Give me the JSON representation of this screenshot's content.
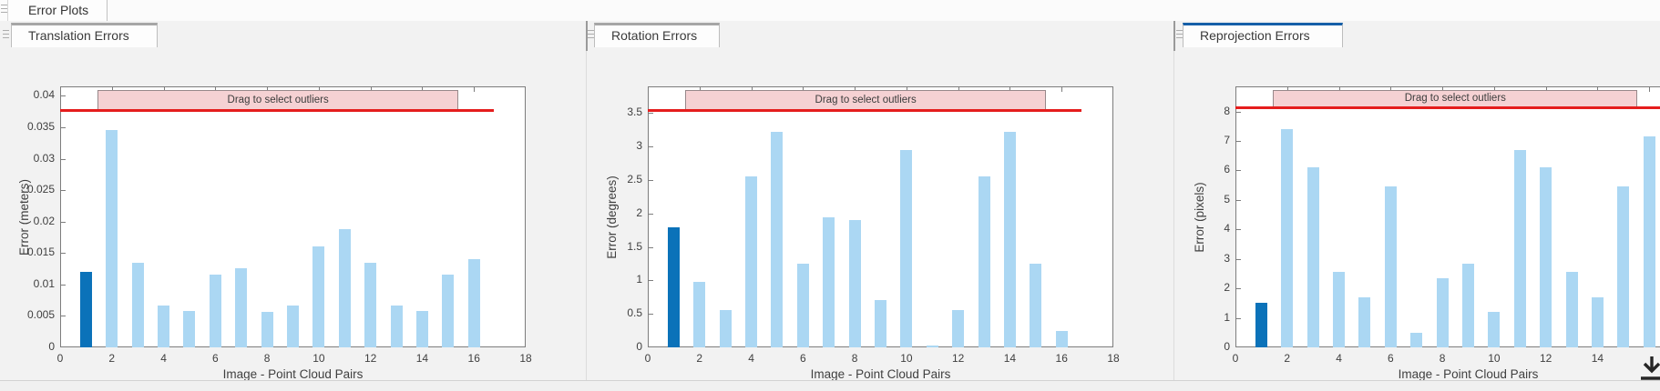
{
  "header": {
    "tab_label": "Error Plots"
  },
  "panels": [
    {
      "tab": "Translation Errors",
      "active": false
    },
    {
      "tab": "Rotation Errors",
      "active": false
    },
    {
      "tab": "Reprojection Errors",
      "active": true
    }
  ],
  "colors": {
    "bar_light": "#abd7f3",
    "bar_selected": "#0b72b9",
    "threshold_red": "#e51d1d",
    "band_fill": "#f5d1d3",
    "band_border": "#97888a",
    "active_tab_accent": "#155fa8",
    "axis_gray": "#7d7d7d",
    "text_gray": "#3f3f3f"
  },
  "icons": {
    "drag_handle": "grip-lines",
    "bottom_right": "download-arrow"
  },
  "chart_data": [
    {
      "type": "bar",
      "title": "Translation Errors",
      "xlabel": "Image - Point Cloud Pairs",
      "ylabel": "Error (meters)",
      "x": [
        1,
        2,
        3,
        4,
        5,
        6,
        7,
        8,
        9,
        10,
        11,
        12,
        13,
        14,
        15,
        16
      ],
      "values": [
        0.012,
        0.0345,
        0.0135,
        0.0067,
        0.0058,
        0.0116,
        0.0126,
        0.0056,
        0.0067,
        0.016,
        0.0188,
        0.0135,
        0.0066,
        0.0058,
        0.0116,
        0.014
      ],
      "selected_index": 0,
      "xlim": [
        0,
        18
      ],
      "ylim": [
        0,
        0.0415
      ],
      "yticks": [
        0,
        0.005,
        0.01,
        0.015,
        0.02,
        0.025,
        0.03,
        0.035,
        0.04
      ],
      "ytick_labels": [
        "0",
        "0.005",
        "0.01",
        "0.015",
        "0.02",
        "0.025",
        "0.03",
        "0.035",
        "0.04"
      ],
      "xticks": [
        0,
        2,
        4,
        6,
        8,
        10,
        12,
        14,
        16,
        18
      ],
      "xtick_labels": [
        "0",
        "2",
        "4",
        "6",
        "8",
        "10",
        "12",
        "14",
        "16",
        "18"
      ],
      "threshold": 0.0377,
      "threshold_x_range": [
        0,
        16.75
      ],
      "band": {
        "label": "Drag to select outliers",
        "x_range": [
          1.45,
          15.4
        ]
      },
      "grid": false,
      "legend": null
    },
    {
      "type": "bar",
      "title": "Rotation Errors",
      "xlabel": "Image - Point Cloud Pairs",
      "ylabel": "Error (degrees)",
      "x": [
        1,
        2,
        3,
        4,
        5,
        6,
        7,
        8,
        9,
        10,
        11,
        12,
        13,
        14,
        15,
        16
      ],
      "values": [
        1.8,
        0.98,
        0.56,
        2.55,
        3.22,
        1.25,
        1.95,
        1.9,
        0.7,
        2.95,
        0.03,
        0.56,
        2.55,
        3.22,
        1.25,
        0.25
      ],
      "selected_index": 0,
      "xlim": [
        0,
        18
      ],
      "ylim": [
        0,
        3.9
      ],
      "yticks": [
        0,
        0.5,
        1,
        1.5,
        2,
        2.5,
        3,
        3.5
      ],
      "ytick_labels": [
        "0",
        "0.5",
        "1",
        "1.5",
        "2",
        "2.5",
        "3",
        "3.5"
      ],
      "xticks": [
        0,
        2,
        4,
        6,
        8,
        10,
        12,
        14,
        16,
        18
      ],
      "xtick_labels": [
        "0",
        "2",
        "4",
        "6",
        "8",
        "10",
        "12",
        "14",
        "16",
        "18"
      ],
      "threshold": 3.55,
      "threshold_x_range": [
        0,
        16.75
      ],
      "band": {
        "label": "Drag to select outliers",
        "x_range": [
          1.45,
          15.4
        ]
      },
      "grid": false,
      "legend": null
    },
    {
      "type": "bar",
      "title": "Reprojection Errors",
      "xlabel": "Image - Point Cloud Pairs",
      "ylabel": "Error (pixels)",
      "x": [
        1,
        2,
        3,
        4,
        5,
        6,
        7,
        8,
        9,
        10,
        11,
        12,
        13,
        14,
        15,
        16
      ],
      "values": [
        1.5,
        7.4,
        6.1,
        2.55,
        1.7,
        5.45,
        0.5,
        2.35,
        2.85,
        1.2,
        6.7,
        6.1,
        2.55,
        1.7,
        5.45,
        7.15
      ],
      "selected_index": 0,
      "xlim": [
        0,
        18
      ],
      "ylim": [
        0,
        8.85
      ],
      "yticks": [
        0,
        1,
        2,
        3,
        4,
        5,
        6,
        7,
        8
      ],
      "ytick_labels": [
        "0",
        "1",
        "2",
        "3",
        "4",
        "5",
        "6",
        "7",
        "8"
      ],
      "xticks": [
        0,
        2,
        4,
        6,
        8,
        10,
        12,
        14,
        16
      ],
      "xtick_labels": [
        "0",
        "2",
        "4",
        "6",
        "8",
        "10",
        "12",
        "14",
        ""
      ],
      "threshold": 8.15,
      "threshold_x_range": [
        0,
        16.75
      ],
      "band": {
        "label": "Drag to select outliers",
        "x_range": [
          1.45,
          15.55
        ]
      },
      "grid": false,
      "legend": null
    }
  ]
}
